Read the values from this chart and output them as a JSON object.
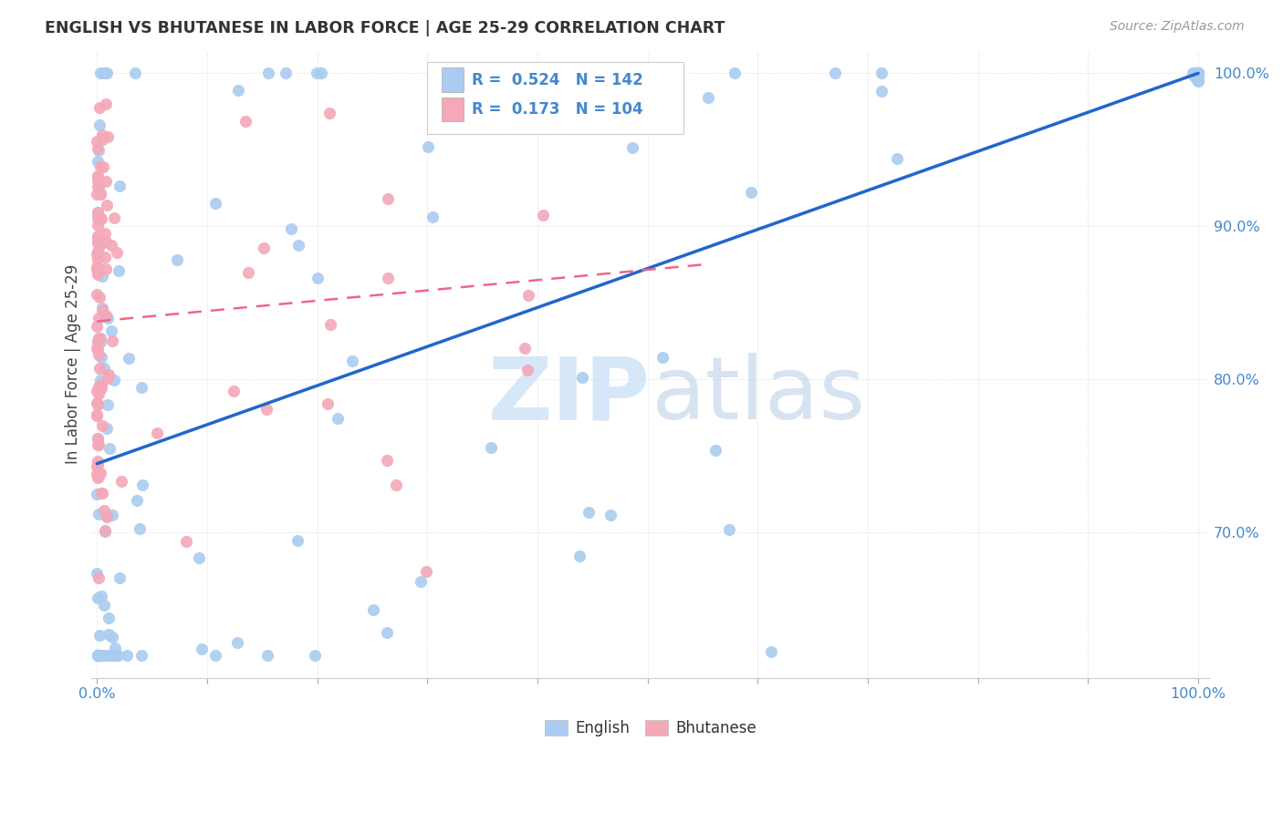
{
  "title": "ENGLISH VS BHUTANESE IN LABOR FORCE | AGE 25-29 CORRELATION CHART",
  "source": "Source: ZipAtlas.com",
  "ylabel": "In Labor Force | Age 25-29",
  "english_R": 0.524,
  "english_N": 142,
  "bhutanese_R": 0.173,
  "bhutanese_N": 104,
  "english_color": "#aaccf0",
  "bhutanese_color": "#f4a8b8",
  "english_line_color": "#2266cc",
  "bhutanese_line_color": "#ee6688",
  "legend_label_english": "English",
  "legend_label_bhutanese": "Bhutanese",
  "watermark_color": "#c5ddf5",
  "grid_color": "#ddddee",
  "tick_color": "#4488cc",
  "title_color": "#333333",
  "source_color": "#999999",
  "ylabel_color": "#444444",
  "xlim_min": -0.005,
  "xlim_max": 1.01,
  "ylim_min": 0.605,
  "ylim_max": 1.015,
  "eng_line_x0": 0.0,
  "eng_line_y0": 0.745,
  "eng_line_x1": 1.0,
  "eng_line_y1": 1.0,
  "bhu_line_x0": 0.0,
  "bhu_line_y0": 0.838,
  "bhu_line_x1": 0.55,
  "bhu_line_y1": 0.875,
  "y_ticks": [
    0.7,
    0.8,
    0.9,
    1.0
  ],
  "y_tick_labels": [
    "70.0%",
    "80.0%",
    "90.0%",
    "100.0%"
  ]
}
